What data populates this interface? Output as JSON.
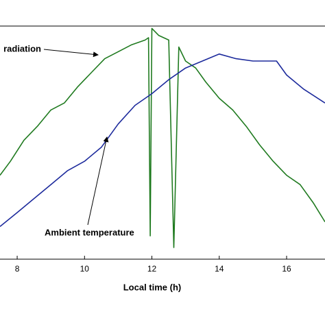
{
  "chart_data": {
    "type": "line",
    "xlabel": "Local time (h)",
    "annotations": [
      "radiation",
      "Ambient temperature"
    ],
    "xlim": [
      7.49,
      17.14
    ],
    "xticks": [
      8,
      10,
      12,
      14,
      16
    ],
    "ylim": [
      0,
      100
    ],
    "series": [
      {
        "color": "#1f7a1f",
        "x": [
          7.49,
          7.8,
          8.2,
          8.6,
          9.0,
          9.4,
          9.8,
          10.2,
          10.6,
          11.0,
          11.4,
          11.8,
          11.9,
          11.95,
          12.0,
          12.2,
          12.5,
          12.65,
          12.8,
          13.0,
          13.3,
          13.6,
          14.0,
          14.4,
          14.8,
          15.2,
          15.6,
          16.0,
          16.4,
          16.8,
          17.14
        ],
        "values": [
          36,
          42,
          51,
          57,
          64,
          67,
          74,
          80,
          86,
          89,
          92,
          94,
          95,
          10,
          99,
          96,
          94,
          5,
          91,
          85,
          82,
          76,
          69,
          64,
          57,
          49,
          42,
          36,
          32,
          24,
          16
        ]
      },
      {
        "color": "#1c2a9c",
        "x": [
          7.49,
          8.0,
          8.5,
          9.0,
          9.5,
          10.0,
          10.5,
          11.0,
          11.5,
          12.0,
          12.5,
          13.0,
          13.5,
          14.0,
          14.5,
          15.0,
          15.7,
          16.0,
          16.5,
          17.14
        ],
        "values": [
          14,
          20,
          26,
          32,
          38,
          42,
          48,
          58,
          66,
          71,
          77,
          82,
          85,
          88,
          86,
          85,
          85,
          79,
          73,
          67
        ]
      }
    ]
  }
}
